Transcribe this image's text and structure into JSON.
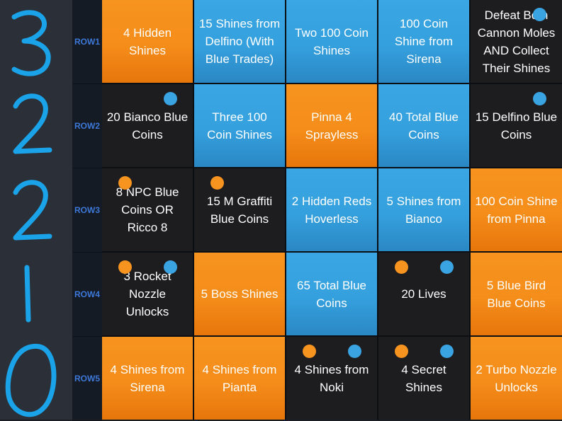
{
  "score_digits": [
    "3",
    "2",
    "2",
    "1",
    "0"
  ],
  "colors": {
    "orange": "#f7931f",
    "blue": "#3aa6e3",
    "black": "#1d1d1f",
    "row_label": "#3d78d8",
    "marker_ink": "#1aa3e8"
  },
  "rows": [
    {
      "label": "ROW1",
      "cells": [
        {
          "text": "4 Hidden Shines",
          "color": "orange",
          "dots": []
        },
        {
          "text": "15 Shines from Delfino (With Blue Trades)",
          "color": "blue",
          "dots": []
        },
        {
          "text": "Two 100 Coin Shines",
          "color": "blue",
          "dots": []
        },
        {
          "text": "100 Coin Shine from Sirena",
          "color": "blue",
          "dots": []
        },
        {
          "text": "Defeat Both Cannon Moles AND Collect Their Shines",
          "color": "black",
          "dots": [
            "blue"
          ]
        }
      ]
    },
    {
      "label": "ROW2",
      "cells": [
        {
          "text": "20 Bianco Blue Coins",
          "color": "black",
          "dots": [
            "blue"
          ]
        },
        {
          "text": "Three 100 Coin Shines",
          "color": "blue",
          "dots": []
        },
        {
          "text": "Pinna 4 Sprayless",
          "color": "orange",
          "dots": []
        },
        {
          "text": "40 Total Blue Coins",
          "color": "blue",
          "dots": []
        },
        {
          "text": "15 Delfino Blue Coins",
          "color": "black",
          "dots": [
            "blue"
          ]
        }
      ]
    },
    {
      "label": "ROW3",
      "cells": [
        {
          "text": "8 NPC Blue Coins OR Ricco 8",
          "color": "black",
          "dots": [
            "orange"
          ]
        },
        {
          "text": "15 M Graffiti Blue Coins",
          "color": "black",
          "dots": [
            "orange"
          ]
        },
        {
          "text": "2 Hidden Reds Hoverless",
          "color": "blue",
          "dots": []
        },
        {
          "text": "5 Shines from Bianco",
          "color": "blue",
          "dots": []
        },
        {
          "text": "100 Coin Shine from Pinna",
          "color": "orange",
          "dots": []
        }
      ]
    },
    {
      "label": "ROW4",
      "cells": [
        {
          "text": "3 Rocket Nozzle Unlocks",
          "color": "black",
          "dots": [
            "orange",
            "blue"
          ]
        },
        {
          "text": "5 Boss Shines",
          "color": "orange",
          "dots": []
        },
        {
          "text": "65 Total Blue Coins",
          "color": "blue",
          "dots": []
        },
        {
          "text": "20 Lives",
          "color": "black",
          "dots": [
            "orange",
            "blue"
          ]
        },
        {
          "text": "5 Blue Bird Blue Coins",
          "color": "orange",
          "dots": []
        }
      ]
    },
    {
      "label": "ROW5",
      "cells": [
        {
          "text": "4 Shines from Sirena",
          "color": "orange",
          "dots": []
        },
        {
          "text": "4 Shines from Pianta",
          "color": "orange",
          "dots": []
        },
        {
          "text": "4 Shines from Noki",
          "color": "black",
          "dots": [
            "orange",
            "blue"
          ]
        },
        {
          "text": "4 Secret Shines",
          "color": "black",
          "dots": [
            "orange",
            "blue"
          ]
        },
        {
          "text": "2 Turbo Nozzle Unlocks",
          "color": "orange",
          "dots": []
        }
      ]
    }
  ]
}
